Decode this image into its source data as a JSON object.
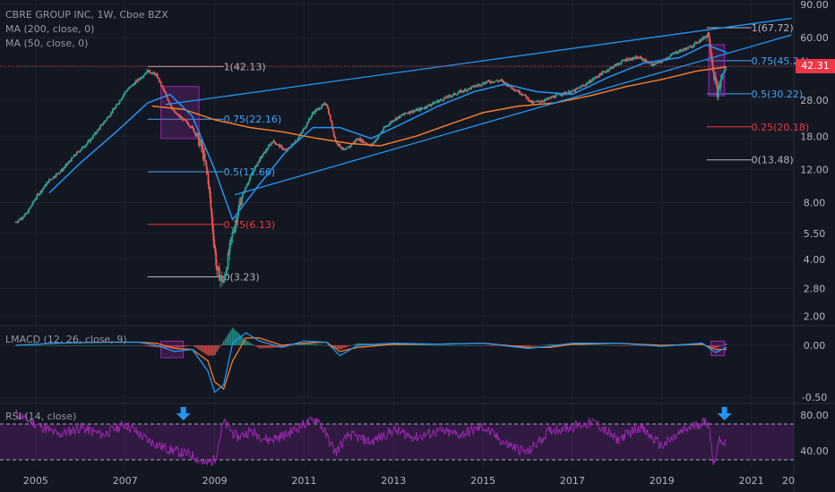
{
  "header": {
    "symbol_line": "CBRE GROUP INC, 1W, Cboe BZX",
    "ma200_label": "MA (200, close, 0)",
    "ma50_label": "MA (50, close, 0)"
  },
  "last_price": "42.31",
  "panes": {
    "macd_label": "LMACD (12, 26, close, 9)",
    "rsi_label": "RSI (14, close)"
  },
  "colors": {
    "background": "#131722",
    "grid": "#1e222d",
    "bull": "#26a69a",
    "bear": "#ef5350",
    "ma200": "#f57c2b",
    "ma50": "#2196f3",
    "channel": "#2196f3",
    "fib_label": "#b2b5be",
    "fib_blue": "#42a5f5",
    "fib_red": "#f23645",
    "box": "#9c27b0",
    "rsi": "#9c27b0",
    "arrow": "#2196f3",
    "price_line": "#f23645"
  },
  "chart_data": [
    {
      "type": "candlestick",
      "title": "CBRE GROUP INC, 1W, Cboe BZX",
      "scale": "log",
      "x_ticks": [
        "2005",
        "2007",
        "2009",
        "2011",
        "2013",
        "2015",
        "2017",
        "2019",
        "2021",
        "20"
      ],
      "y_ticks": [
        "90.00",
        "60.00",
        "42.00",
        "28.00",
        "18.00",
        "12.00",
        "8.00",
        "5.50",
        "4.00",
        "2.80",
        "2.00"
      ],
      "ylim": [
        1.8,
        95
      ],
      "close_series": {
        "x": [
          2004.55,
          2004.8,
          2005.0,
          2005.3,
          2005.6,
          2005.9,
          2006.2,
          2006.5,
          2006.8,
          2007.0,
          2007.3,
          2007.5,
          2007.7,
          2007.9,
          2008.1,
          2008.3,
          2008.5,
          2008.7,
          2008.85,
          2008.95,
          2009.05,
          2009.2,
          2009.4,
          2009.6,
          2009.8,
          2010.0,
          2010.3,
          2010.6,
          2010.9,
          2011.2,
          2011.5,
          2011.7,
          2011.9,
          2012.2,
          2012.5,
          2012.8,
          2013.0,
          2013.3,
          2013.6,
          2013.9,
          2014.2,
          2014.5,
          2014.8,
          2015.1,
          2015.4,
          2015.7,
          2015.9,
          2016.1,
          2016.4,
          2016.7,
          2017.0,
          2017.3,
          2017.6,
          2017.9,
          2018.2,
          2018.5,
          2018.8,
          2019.0,
          2019.3,
          2019.6,
          2019.9,
          2020.05,
          2020.15,
          2020.25,
          2020.35,
          2020.45
        ],
        "y": [
          6.3,
          7.0,
          8.5,
          10.5,
          12.0,
          14.5,
          17.0,
          21.0,
          26.0,
          31.0,
          36.0,
          40.0,
          38.0,
          30.0,
          24.0,
          22.0,
          20.0,
          16.0,
          11.0,
          6.0,
          3.5,
          3.0,
          5.5,
          8.5,
          11.0,
          13.5,
          17.0,
          15.0,
          18.0,
          24.0,
          27.0,
          17.0,
          15.0,
          17.5,
          16.0,
          20.0,
          22.0,
          24.0,
          25.0,
          27.0,
          29.0,
          31.0,
          33.0,
          35.0,
          35.5,
          32.0,
          30.0,
          27.0,
          28.0,
          30.0,
          31.0,
          34.0,
          38.0,
          42.0,
          46.0,
          47.0,
          43.0,
          45.0,
          50.0,
          53.0,
          59.0,
          63.0,
          40.0,
          30.0,
          38.0,
          42.31
        ]
      },
      "ma50": {
        "x": [
          2005.3,
          2006.0,
          2006.8,
          2007.5,
          2008.0,
          2008.5,
          2009.0,
          2009.4,
          2010.0,
          2010.6,
          2011.2,
          2011.8,
          2012.5,
          2013.2,
          2014.0,
          2014.8,
          2015.5,
          2016.2,
          2017.0,
          2017.8,
          2018.6,
          2019.4,
          2020.0,
          2020.45
        ],
        "y": [
          9.0,
          13.0,
          19.0,
          27.0,
          30.0,
          23.0,
          12.0,
          6.5,
          10.0,
          15.0,
          20.0,
          20.0,
          17.5,
          21.0,
          26.0,
          31.0,
          34.0,
          31.0,
          30.0,
          37.0,
          44.0,
          47.0,
          55.0,
          50.0
        ]
      },
      "ma200": {
        "x": [
          2007.6,
          2008.3,
          2009.0,
          2009.8,
          2010.5,
          2011.3,
          2012.0,
          2012.7,
          2013.5,
          2014.3,
          2015.0,
          2015.8,
          2016.6,
          2017.4,
          2018.2,
          2019.0,
          2019.8,
          2020.45
        ],
        "y": [
          26.0,
          25.0,
          22.0,
          20.0,
          19.0,
          17.5,
          16.5,
          16.0,
          18.0,
          21.0,
          24.0,
          26.0,
          27.0,
          29.5,
          33.0,
          36.0,
          40.0,
          42.0
        ]
      },
      "fib_levels_2007_2009": [
        {
          "label": "1(42.13)",
          "price": 42.13,
          "color": "fib_label"
        },
        {
          "label": "0.75(22.16)",
          "price": 22.16,
          "color": "fib_blue"
        },
        {
          "label": "0.5(11.66)",
          "price": 11.66,
          "color": "fib_blue"
        },
        {
          "label": "0.25(6.13)",
          "price": 6.13,
          "color": "fib_red"
        },
        {
          "label": "0(3.23)",
          "price": 3.23,
          "color": "fib_label"
        }
      ],
      "fib_levels_2020": [
        {
          "label": "1(67.72)",
          "price": 67.72,
          "color": "fib_label"
        },
        {
          "label": "0.75(45.24)",
          "price": 45.24,
          "color": "fib_blue"
        },
        {
          "label": "0.5(30.22)",
          "price": 30.22,
          "color": "fib_blue"
        },
        {
          "label": "0.25(20.18)",
          "price": 20.18,
          "color": "fib_red"
        },
        {
          "label": "0(13.48)",
          "price": 13.48,
          "color": "fib_label"
        }
      ],
      "channel_lines": [
        {
          "from": [
            2007.9,
            26.5
          ],
          "to": [
            2021.9,
            76.0
          ]
        },
        {
          "from": [
            2009.45,
            8.8
          ],
          "to": [
            2021.9,
            62.0
          ]
        }
      ],
      "highlight_boxes": [
        {
          "x": [
            2007.8,
            2008.65
          ],
          "y": [
            17.5,
            33.0
          ]
        },
        {
          "x": [
            2020.05,
            2020.4
          ],
          "y": [
            29.5,
            55.0
          ]
        }
      ]
    },
    {
      "type": "line",
      "title": "LMACD (12, 26, close, 9)",
      "y_ticks": [
        "0.00",
        "-0.50"
      ],
      "ylim": [
        -0.55,
        0.18
      ],
      "macd": {
        "x": [
          2004.55,
          2005.5,
          2006.5,
          2007.3,
          2007.7,
          2008.1,
          2008.5,
          2008.85,
          2009.0,
          2009.2,
          2009.4,
          2009.7,
          2010.0,
          2010.5,
          2011.0,
          2011.5,
          2011.8,
          2012.2,
          2013.0,
          2014.0,
          2015.0,
          2016.0,
          2016.5,
          2017.0,
          2018.0,
          2019.0,
          2019.9,
          2020.2,
          2020.45
        ],
        "y": [
          0.0,
          0.02,
          0.03,
          0.03,
          0.0,
          -0.06,
          -0.04,
          -0.25,
          -0.45,
          -0.38,
          0.02,
          0.12,
          0.04,
          -0.02,
          0.04,
          0.03,
          -0.1,
          0.0,
          0.02,
          0.01,
          0.02,
          -0.03,
          -0.01,
          0.02,
          0.02,
          -0.01,
          0.02,
          -0.07,
          -0.02
        ]
      },
      "signal": {
        "x": [
          2004.55,
          2005.5,
          2006.5,
          2007.3,
          2007.7,
          2008.1,
          2008.5,
          2008.85,
          2009.0,
          2009.2,
          2009.4,
          2009.7,
          2010.0,
          2010.5,
          2011.0,
          2011.5,
          2011.8,
          2012.2,
          2013.0,
          2014.0,
          2015.0,
          2016.0,
          2016.5,
          2017.0,
          2018.0,
          2019.0,
          2019.9,
          2020.2,
          2020.45
        ],
        "y": [
          0.0,
          0.02,
          0.03,
          0.03,
          0.02,
          -0.03,
          -0.04,
          -0.15,
          -0.35,
          -0.42,
          -0.15,
          0.07,
          0.07,
          0.0,
          0.02,
          0.03,
          -0.06,
          -0.02,
          0.01,
          0.01,
          0.02,
          -0.02,
          -0.02,
          0.01,
          0.02,
          0.0,
          0.01,
          -0.04,
          -0.04
        ]
      },
      "highlight_boxes": [
        {
          "x": [
            2007.8,
            2008.3
          ],
          "y": [
            -0.12,
            0.04
          ]
        },
        {
          "x": [
            2020.1,
            2020.4
          ],
          "y": [
            -0.1,
            0.04
          ]
        }
      ]
    },
    {
      "type": "line",
      "title": "RSI (14, close)",
      "y_ticks": [
        "80.00",
        "40.00"
      ],
      "ylim": [
        22,
        92
      ],
      "bands": [
        70,
        30
      ],
      "rsi": {
        "x": [
          2004.55,
          2005.0,
          2005.5,
          2006.0,
          2006.5,
          2007.0,
          2007.5,
          2007.8,
          2008.1,
          2008.5,
          2008.8,
          2009.0,
          2009.2,
          2009.5,
          2009.8,
          2010.2,
          2010.6,
          2011.0,
          2011.3,
          2011.7,
          2012.0,
          2012.5,
          2013.0,
          2013.5,
          2014.0,
          2014.5,
          2015.0,
          2015.5,
          2016.0,
          2016.5,
          2017.0,
          2017.5,
          2018.0,
          2018.5,
          2019.0,
          2019.5,
          2019.9,
          2020.05,
          2020.15,
          2020.3,
          2020.45
        ],
        "y": [
          82,
          70,
          58,
          66,
          58,
          70,
          52,
          45,
          40,
          35,
          25,
          30,
          72,
          55,
          62,
          52,
          58,
          70,
          76,
          38,
          58,
          50,
          63,
          55,
          62,
          58,
          67,
          48,
          38,
          63,
          67,
          72,
          52,
          67,
          45,
          63,
          72,
          72,
          25,
          55,
          45
        ]
      },
      "arrows_at": [
        2008.3,
        2020.4
      ]
    }
  ]
}
